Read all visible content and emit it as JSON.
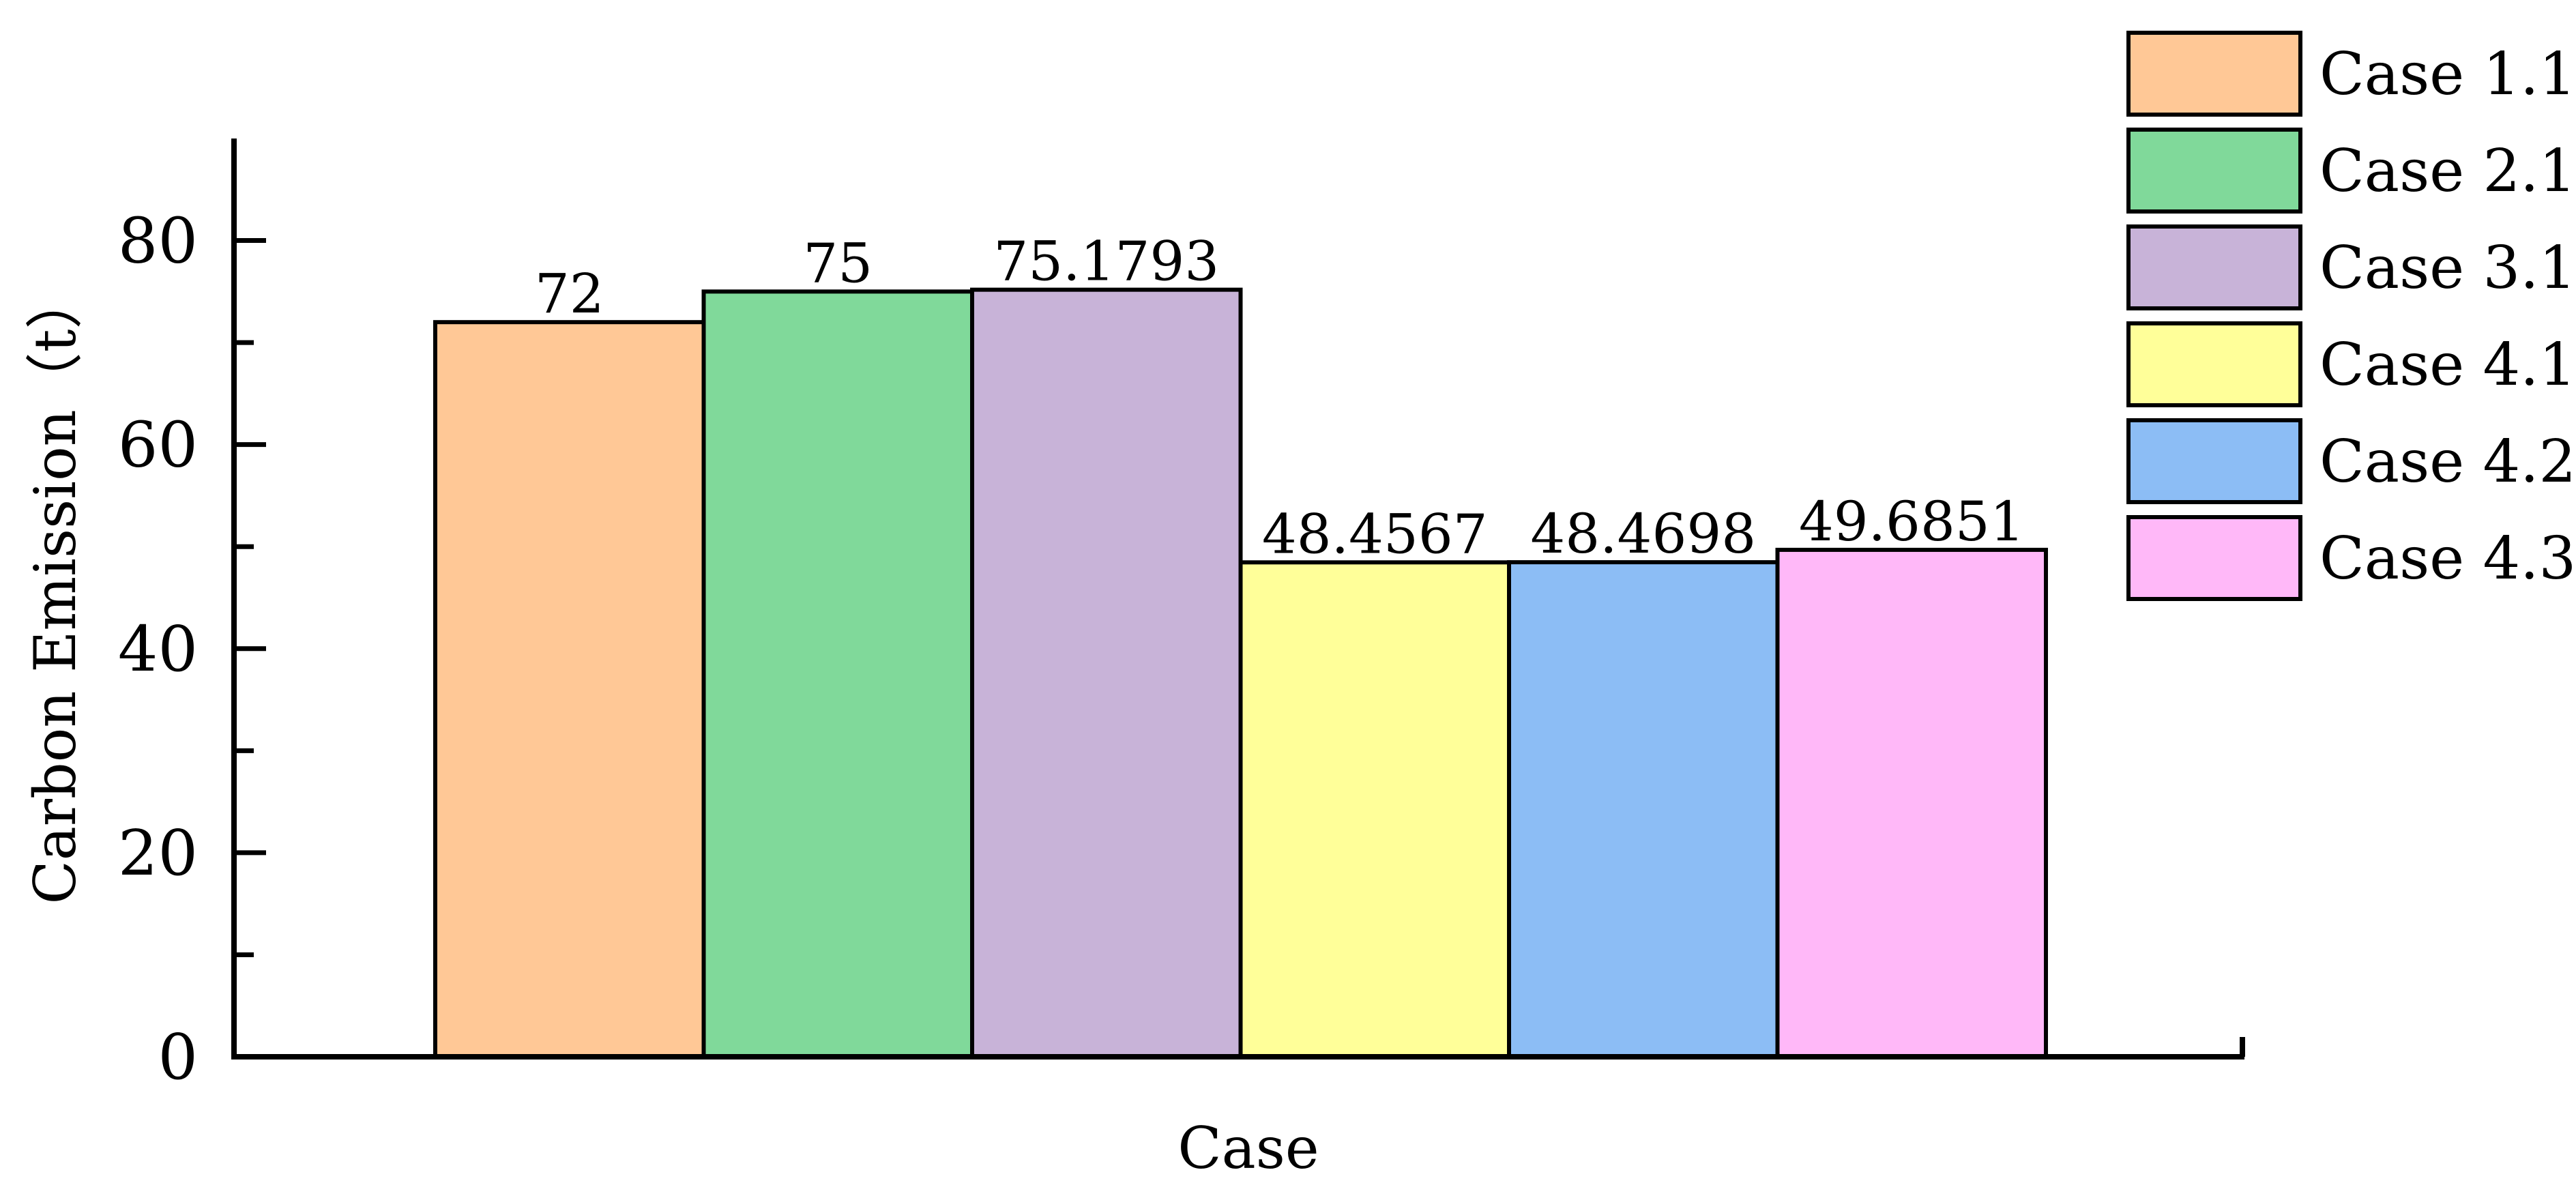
{
  "chart_data": {
    "type": "bar",
    "title": "",
    "xlabel": "Case",
    "ylabel": "Carbon Emission（t）",
    "ylim": [
      0,
      90
    ],
    "yticks": [
      0,
      20,
      40,
      60,
      80
    ],
    "grid": false,
    "legend_position": "top-right",
    "series": [
      {
        "name": "Case 1.1",
        "value": 72,
        "label": "72",
        "color": "#FFC896"
      },
      {
        "name": "Case 2.1",
        "value": 75,
        "label": "75",
        "color": "#80D99A"
      },
      {
        "name": "Case 3.1",
        "value": 75.1793,
        "label": "75.1793",
        "color": "#C8B3D8"
      },
      {
        "name": "Case 4.1",
        "value": 48.4567,
        "label": "48.4567",
        "color": "#FFFF99"
      },
      {
        "name": "Case 4.2",
        "value": 48.4698,
        "label": "48.4698",
        "color": "#8CBDF5"
      },
      {
        "name": "Case 4.3",
        "value": 49.6851,
        "label": "49.6851",
        "color": "#FFB8F8"
      }
    ]
  }
}
